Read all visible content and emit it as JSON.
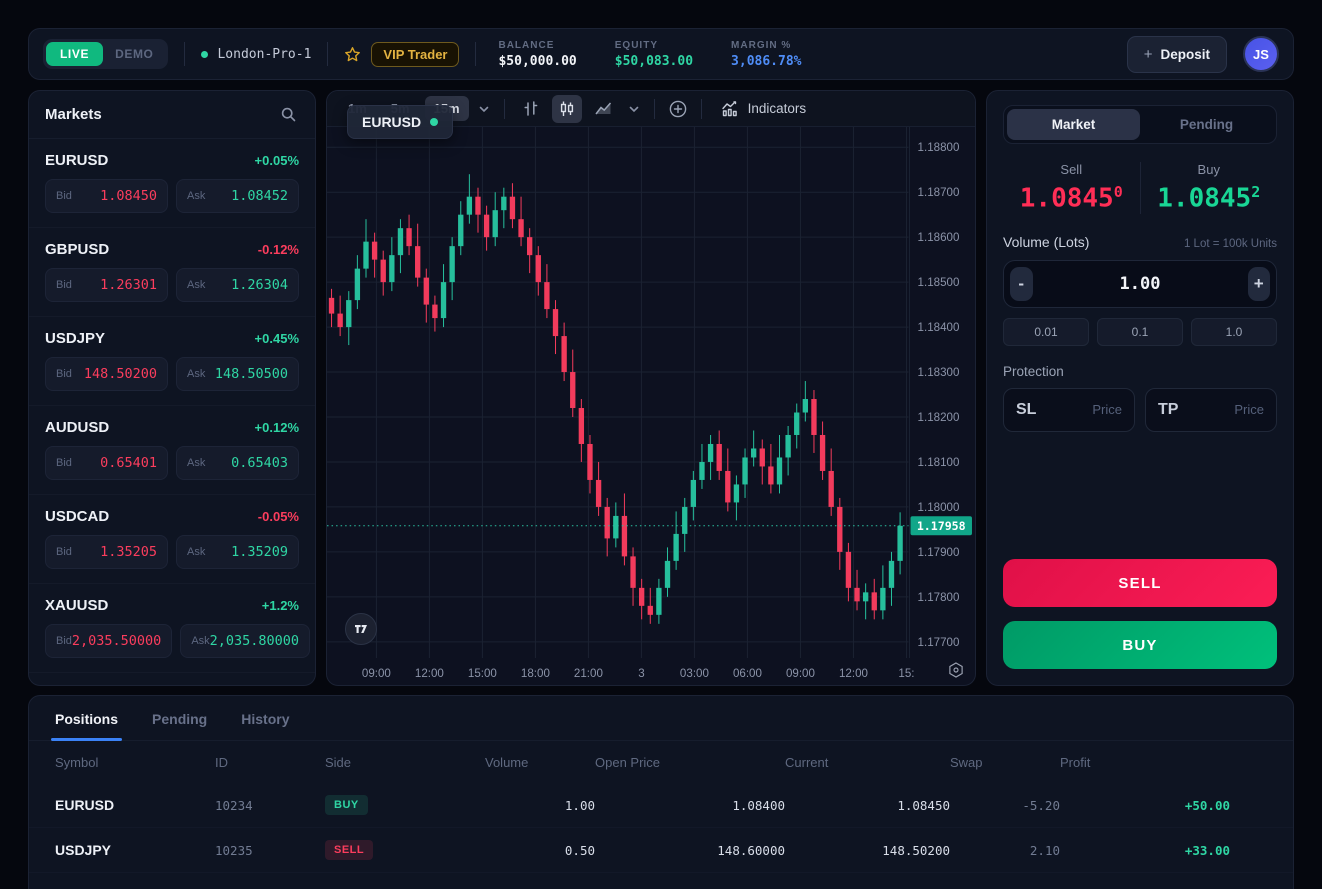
{
  "topbar": {
    "live_label": "LIVE",
    "demo_label": "DEMO",
    "account_name": "London-Pro-1",
    "vip_label": "VIP Trader",
    "stats": {
      "balance": {
        "label": "BALANCE",
        "value": "$50,000.00"
      },
      "equity": {
        "label": "EQUITY",
        "value": "$50,083.00"
      },
      "margin": {
        "label": "MARGIN %",
        "value": "3,086.78%"
      }
    },
    "deposit_plus": "+",
    "deposit_label": "Deposit",
    "avatar_initials": "JS"
  },
  "markets": {
    "title": "Markets",
    "items": [
      {
        "symbol": "EURUSD",
        "change": "+0.05%",
        "dir": "up",
        "bid_label": "Bid",
        "ask_label": "Ask",
        "bid": "1.08450",
        "ask": "1.08452"
      },
      {
        "symbol": "GBPUSD",
        "change": "-0.12%",
        "dir": "down",
        "bid_label": "Bid",
        "ask_label": "Ask",
        "bid": "1.26301",
        "ask": "1.26304"
      },
      {
        "symbol": "USDJPY",
        "change": "+0.45%",
        "dir": "up",
        "bid_label": "Bid",
        "ask_label": "Ask",
        "bid": "148.50200",
        "ask": "148.50500"
      },
      {
        "symbol": "AUDUSD",
        "change": "+0.12%",
        "dir": "up",
        "bid_label": "Bid",
        "ask_label": "Ask",
        "bid": "0.65401",
        "ask": "0.65403"
      },
      {
        "symbol": "USDCAD",
        "change": "-0.05%",
        "dir": "down",
        "bid_label": "Bid",
        "ask_label": "Ask",
        "bid": "1.35205",
        "ask": "1.35209"
      },
      {
        "symbol": "XAUUSD",
        "change": "+1.2%",
        "dir": "up",
        "bid_label": "Bid",
        "ask_label": "Ask",
        "bid": "2,035.50000",
        "ask": "2,035.80000"
      }
    ]
  },
  "chart": {
    "symbol": "EURUSD",
    "timeframes": [
      {
        "label": "1m",
        "state": ""
      },
      {
        "label": "5m",
        "state": ""
      },
      {
        "label": "15m",
        "state": "active"
      }
    ],
    "indicators_label": "Indicators",
    "chart_data": {
      "type": "candlestick",
      "symbol": "EURUSD",
      "timeframe": "15m",
      "up_color": "#26bf9c",
      "down_color": "#f23b5c",
      "current_price": "1.17958",
      "price_labels": [
        "1.18800",
        "1.18700",
        "1.18600",
        "1.18500",
        "1.18400",
        "1.18300",
        "1.18200",
        "1.18100",
        "1.18000",
        "1.17900",
        "1.17800",
        "1.17700"
      ],
      "time_labels": [
        "09:00",
        "12:00",
        "15:00",
        "18:00",
        "21:00",
        "3",
        "03:00",
        "06:00",
        "09:00",
        "12:00",
        "15:"
      ],
      "y_range": [
        1.17664,
        1.18845
      ],
      "candles": [
        [
          1.18465,
          1.18485,
          1.184,
          1.1843
        ],
        [
          1.1843,
          1.1847,
          1.1838,
          1.184
        ],
        [
          1.184,
          1.1848,
          1.1836,
          1.1846
        ],
        [
          1.1846,
          1.1856,
          1.1844,
          1.1853
        ],
        [
          1.1853,
          1.1864,
          1.1851,
          1.1859
        ],
        [
          1.1859,
          1.1861,
          1.1851,
          1.1855
        ],
        [
          1.1855,
          1.1857,
          1.1847,
          1.185
        ],
        [
          1.185,
          1.186,
          1.1848,
          1.1856
        ],
        [
          1.1856,
          1.1864,
          1.1852,
          1.1862
        ],
        [
          1.1862,
          1.1865,
          1.1856,
          1.1858
        ],
        [
          1.1858,
          1.1863,
          1.1849,
          1.1851
        ],
        [
          1.1851,
          1.1853,
          1.1841,
          1.1845
        ],
        [
          1.1845,
          1.1847,
          1.1839,
          1.1842
        ],
        [
          1.1842,
          1.1854,
          1.184,
          1.185
        ],
        [
          1.185,
          1.186,
          1.1846,
          1.1858
        ],
        [
          1.1858,
          1.1868,
          1.1856,
          1.1865
        ],
        [
          1.1865,
          1.1874,
          1.1863,
          1.1869
        ],
        [
          1.1869,
          1.1871,
          1.1861,
          1.1865
        ],
        [
          1.1865,
          1.1867,
          1.1857,
          1.186
        ],
        [
          1.186,
          1.187,
          1.1858,
          1.1866
        ],
        [
          1.1866,
          1.1871,
          1.1862,
          1.1869
        ],
        [
          1.1869,
          1.1872,
          1.1862,
          1.1864
        ],
        [
          1.1864,
          1.1869,
          1.1858,
          1.186
        ],
        [
          1.186,
          1.1862,
          1.1852,
          1.1856
        ],
        [
          1.1856,
          1.1858,
          1.1847,
          1.185
        ],
        [
          1.185,
          1.1854,
          1.1842,
          1.1844
        ],
        [
          1.1844,
          1.1846,
          1.1834,
          1.1838
        ],
        [
          1.1838,
          1.1841,
          1.1828,
          1.183
        ],
        [
          1.183,
          1.1835,
          1.182,
          1.1822
        ],
        [
          1.1822,
          1.1824,
          1.181,
          1.1814
        ],
        [
          1.1814,
          1.1816,
          1.1803,
          1.1806
        ],
        [
          1.1806,
          1.181,
          1.1798,
          1.18
        ],
        [
          1.18,
          1.1802,
          1.1789,
          1.1793
        ],
        [
          1.1793,
          1.1801,
          1.1791,
          1.1798
        ],
        [
          1.1798,
          1.1803,
          1.1787,
          1.1789
        ],
        [
          1.1789,
          1.1791,
          1.1778,
          1.1782
        ],
        [
          1.1782,
          1.1784,
          1.1775,
          1.1778
        ],
        [
          1.1778,
          1.1782,
          1.1774,
          1.1776
        ],
        [
          1.1776,
          1.1784,
          1.1774,
          1.1782
        ],
        [
          1.1782,
          1.1791,
          1.178,
          1.1788
        ],
        [
          1.1788,
          1.1799,
          1.1786,
          1.1794
        ],
        [
          1.1794,
          1.1802,
          1.179,
          1.18
        ],
        [
          1.18,
          1.1808,
          1.1797,
          1.1806
        ],
        [
          1.1806,
          1.1814,
          1.1804,
          1.181
        ],
        [
          1.181,
          1.1816,
          1.1806,
          1.1814
        ],
        [
          1.1814,
          1.1817,
          1.1806,
          1.1808
        ],
        [
          1.1808,
          1.1813,
          1.1799,
          1.1801
        ],
        [
          1.1801,
          1.1807,
          1.1797,
          1.1805
        ],
        [
          1.1805,
          1.1813,
          1.1802,
          1.1811
        ],
        [
          1.1811,
          1.1817,
          1.1809,
          1.1813
        ],
        [
          1.1813,
          1.1815,
          1.1805,
          1.1809
        ],
        [
          1.1809,
          1.1814,
          1.1803,
          1.1805
        ],
        [
          1.1805,
          1.1816,
          1.1803,
          1.1811
        ],
        [
          1.1811,
          1.1818,
          1.1807,
          1.1816
        ],
        [
          1.1816,
          1.1823,
          1.1813,
          1.1821
        ],
        [
          1.1821,
          1.1828,
          1.1819,
          1.1824
        ],
        [
          1.1824,
          1.1826,
          1.1812,
          1.1816
        ],
        [
          1.1816,
          1.1819,
          1.1806,
          1.1808
        ],
        [
          1.1808,
          1.1813,
          1.1798,
          1.18
        ],
        [
          1.18,
          1.1802,
          1.1786,
          1.179
        ],
        [
          1.179,
          1.1792,
          1.1779,
          1.1782
        ],
        [
          1.1782,
          1.1786,
          1.1777,
          1.1779
        ],
        [
          1.1779,
          1.1783,
          1.1775,
          1.1781
        ],
        [
          1.1781,
          1.1784,
          1.1775,
          1.1777
        ],
        [
          1.1777,
          1.1787,
          1.1775,
          1.1782
        ],
        [
          1.1782,
          1.179,
          1.1778,
          1.1788
        ],
        [
          1.1788,
          1.17988,
          1.1785,
          1.17958
        ]
      ]
    }
  },
  "order": {
    "tabs": [
      {
        "label": "Market",
        "state": "active"
      },
      {
        "label": "Pending",
        "state": ""
      }
    ],
    "sell": {
      "label": "Sell",
      "price": "1.0845",
      "sup": "0"
    },
    "buy": {
      "label": "Buy",
      "price": "1.0845",
      "sup": "2"
    },
    "volume": {
      "label": "Volume (Lots)",
      "hint": "1 Lot = 100k Units",
      "minus": "-",
      "plus": "+",
      "value": "1.00",
      "presets": [
        {
          "label": "0.01"
        },
        {
          "label": "0.1"
        },
        {
          "label": "1.0"
        }
      ]
    },
    "protection": {
      "label": "Protection",
      "sl_label": "SL",
      "tp_label": "TP",
      "price_placeholder": "Price"
    },
    "sell_button": "SELL",
    "buy_button": "BUY"
  },
  "positions": {
    "tabs": [
      {
        "label": "Positions",
        "state": "active"
      },
      {
        "label": "Pending",
        "state": ""
      },
      {
        "label": "History",
        "state": ""
      }
    ],
    "columns": [
      {
        "label": "Symbol"
      },
      {
        "label": "ID"
      },
      {
        "label": "Side"
      },
      {
        "label": "Volume"
      },
      {
        "label": "Open Price"
      },
      {
        "label": "Current"
      },
      {
        "label": "Swap"
      },
      {
        "label": "Profit"
      }
    ],
    "rows": [
      {
        "symbol": "EURUSD",
        "id": "10234",
        "side": "BUY",
        "side_class": "buy",
        "volume": "1.00",
        "open": "1.08400",
        "current": "1.08450",
        "swap": "-5.20",
        "profit": "+50.00"
      },
      {
        "symbol": "USDJPY",
        "id": "10235",
        "side": "SELL",
        "side_class": "sell",
        "volume": "0.50",
        "open": "148.60000",
        "current": "148.50200",
        "swap": "2.10",
        "profit": "+33.00"
      }
    ]
  }
}
